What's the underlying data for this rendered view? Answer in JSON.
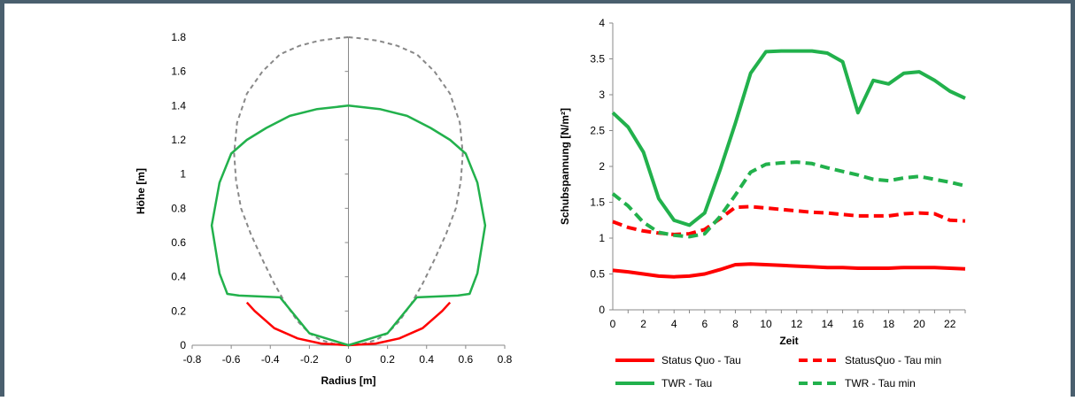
{
  "chart_data": [
    {
      "type": "line",
      "xlabel": "Radius [m]",
      "ylabel": "Höhe [m]",
      "xlim": [
        -0.8,
        0.8
      ],
      "ylim": [
        0,
        1.8
      ],
      "xticks": [
        "-0.8",
        "-0.6",
        "-0.4",
        "-0.2",
        "0",
        "0.2",
        "0.4",
        "0.6",
        "0.8"
      ],
      "yticks": [
        "0",
        "0.2",
        "0.4",
        "0.6",
        "0.8",
        "1",
        "1.2",
        "1.4",
        "1.6",
        "1.8"
      ],
      "grid": false,
      "legend": "none",
      "series": [
        {
          "color": "#888888",
          "style": "dashed",
          "x": [
            0,
            0.05,
            0.15,
            0.25,
            0.35,
            0.44,
            0.52,
            0.57,
            0.585,
            0.575,
            0.55,
            0.5,
            0.44,
            0.38,
            0.32,
            0.26,
            0.2,
            0.14,
            0.08,
            0,
            -0.08,
            -0.14,
            -0.2,
            -0.26,
            -0.32,
            -0.38,
            -0.44,
            -0.5,
            -0.55,
            -0.575,
            -0.585,
            -0.57,
            -0.52,
            -0.44,
            -0.35,
            -0.25,
            -0.15,
            -0.05,
            0
          ],
          "y": [
            1.8,
            1.795,
            1.78,
            1.75,
            1.7,
            1.6,
            1.47,
            1.3,
            1.12,
            0.96,
            0.8,
            0.65,
            0.5,
            0.36,
            0.24,
            0.14,
            0.07,
            0.03,
            0.01,
            0,
            0.01,
            0.03,
            0.07,
            0.14,
            0.24,
            0.36,
            0.5,
            0.65,
            0.8,
            0.96,
            1.12,
            1.3,
            1.47,
            1.6,
            1.7,
            1.75,
            1.78,
            1.795,
            1.8
          ]
        },
        {
          "color": "#ff0000",
          "style": "solid",
          "x": [
            -0.52,
            -0.48,
            -0.38,
            -0.26,
            -0.14,
            0,
            0.14,
            0.26,
            0.38,
            0.48,
            0.52
          ],
          "y": [
            0.25,
            0.2,
            0.1,
            0.04,
            0.01,
            0,
            0.01,
            0.04,
            0.1,
            0.2,
            0.25
          ]
        },
        {
          "color": "#22b14c",
          "style": "solid",
          "x": [
            0,
            0.16,
            0.3,
            0.42,
            0.52,
            0.6,
            0.66,
            0.7,
            0.66,
            0.62,
            0.56,
            0.35,
            0.2,
            0,
            -0.2,
            -0.35,
            -0.56,
            -0.62,
            -0.66,
            -0.7,
            -0.66,
            -0.6,
            -0.52,
            -0.42,
            -0.3,
            -0.16,
            0
          ],
          "y": [
            1.4,
            1.38,
            1.34,
            1.27,
            1.2,
            1.12,
            0.95,
            0.7,
            0.42,
            0.3,
            0.29,
            0.28,
            0.07,
            0,
            0.07,
            0.28,
            0.29,
            0.3,
            0.42,
            0.7,
            0.95,
            1.12,
            1.2,
            1.27,
            1.34,
            1.38,
            1.4
          ]
        }
      ]
    },
    {
      "type": "line",
      "xlabel": "Zeit",
      "ylabel": "Schubspannung [N/m²]",
      "xlim": [
        0,
        23
      ],
      "ylim": [
        0,
        4
      ],
      "xticks": [
        "0",
        "2",
        "4",
        "6",
        "8",
        "10",
        "12",
        "14",
        "16",
        "18",
        "20",
        "22"
      ],
      "yticks": [
        "0",
        "0.5",
        "1",
        "1.5",
        "2",
        "2.5",
        "3",
        "3.5",
        "4"
      ],
      "grid": false,
      "legend": "bottom",
      "x": [
        0,
        1,
        2,
        3,
        4,
        5,
        6,
        7,
        8,
        9,
        10,
        11,
        12,
        13,
        14,
        15,
        16,
        17,
        18,
        19,
        20,
        21,
        22,
        23
      ],
      "series": [
        {
          "name": "Status Quo - Tau",
          "color": "#ff0000",
          "style": "solid",
          "values": [
            0.55,
            0.53,
            0.5,
            0.47,
            0.46,
            0.47,
            0.5,
            0.56,
            0.63,
            0.64,
            0.63,
            0.62,
            0.61,
            0.6,
            0.59,
            0.59,
            0.58,
            0.58,
            0.58,
            0.59,
            0.59,
            0.59,
            0.58,
            0.57
          ]
        },
        {
          "name": "StatusQuo - Tau min",
          "color": "#ff0000",
          "style": "dashed",
          "values": [
            1.23,
            1.15,
            1.1,
            1.07,
            1.05,
            1.06,
            1.12,
            1.27,
            1.43,
            1.44,
            1.42,
            1.4,
            1.38,
            1.36,
            1.35,
            1.33,
            1.31,
            1.31,
            1.31,
            1.34,
            1.35,
            1.34,
            1.25,
            1.24
          ]
        },
        {
          "name": "TWR - Tau",
          "color": "#22b14c",
          "style": "solid",
          "values": [
            2.75,
            2.55,
            2.2,
            1.55,
            1.25,
            1.18,
            1.35,
            1.95,
            2.6,
            3.3,
            3.6,
            3.61,
            3.61,
            3.61,
            3.58,
            3.46,
            2.75,
            3.2,
            3.15,
            3.3,
            3.32,
            3.2,
            3.05,
            2.95
          ]
        },
        {
          "name": "TWR - Tau min",
          "color": "#22b14c",
          "style": "dashed",
          "values": [
            1.62,
            1.45,
            1.22,
            1.08,
            1.04,
            1.02,
            1.06,
            1.3,
            1.6,
            1.92,
            2.03,
            2.05,
            2.06,
            2.04,
            1.98,
            1.93,
            1.88,
            1.82,
            1.8,
            1.84,
            1.86,
            1.82,
            1.78,
            1.73
          ]
        }
      ]
    }
  ]
}
